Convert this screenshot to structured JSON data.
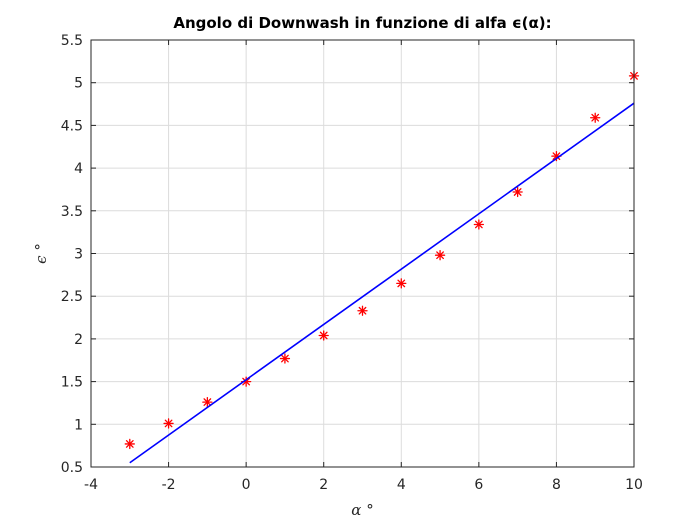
{
  "chart_data": {
    "type": "scatter",
    "title": "Angolo di Downwash in funzione di alfa ϵ(α):",
    "xlabel": "α °",
    "ylabel": "ϵ °",
    "xlim": [
      -4,
      10
    ],
    "ylim": [
      0.5,
      5.5
    ],
    "xticks": [
      -4,
      -2,
      0,
      2,
      4,
      6,
      8,
      10
    ],
    "yticks": [
      0.5,
      1,
      1.5,
      2,
      2.5,
      3,
      3.5,
      4,
      4.5,
      5,
      5.5
    ],
    "xtick_labels": [
      "-4",
      "-2",
      "0",
      "2",
      "4",
      "6",
      "8",
      "10"
    ],
    "ytick_labels": [
      "0.5",
      "1",
      "1.5",
      "2",
      "2.5",
      "3",
      "3.5",
      "4",
      "4.5",
      "5",
      "5.5"
    ],
    "grid": true,
    "series": [
      {
        "kind": "scatter",
        "marker": "asterisk",
        "color": "#ff0000",
        "x": [
          -3,
          -2,
          -1,
          0,
          1,
          2,
          3,
          4,
          5,
          6,
          7,
          8,
          9,
          10
        ],
        "y": [
          0.77,
          1.01,
          1.26,
          1.5,
          1.77,
          2.04,
          2.33,
          2.65,
          2.98,
          3.34,
          3.72,
          4.14,
          4.59,
          5.08
        ]
      },
      {
        "kind": "line",
        "color": "#0000ff",
        "x": [
          -3,
          10
        ],
        "y": [
          0.55,
          4.76
        ]
      }
    ]
  }
}
